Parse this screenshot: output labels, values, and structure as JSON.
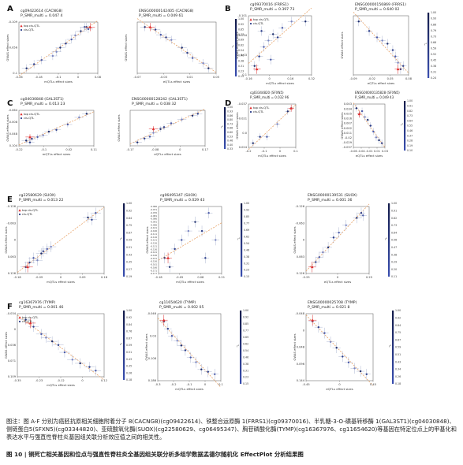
{
  "figure": {
    "note": "图注：图 A-F 分别为癌胚抗原相关细胞附着分子 8(CACNG8)(cg09422614)、铁整合运原酶 1(FRRS1)(cg09370016)、半乳糖-3-O-磺基转移酶 1(GAL3ST1)(cg04030848)、侧链蛋白5(SFXN5)(cg03344820)、亚硫酸氧化酶(SUOX)(cg22580629、cg06495347)、胸苷磷酸化酶(TYMP)(cg16367976、cg11654620)等基因在特定位点上的甲基化和表达水平与强直性脊柱炎基因组关联分析效应值之间的相关性。",
    "title": "图 10 | 铜死亡相关基因和位点与强直性脊柱炎全基因组关联分析多组学数据孟德尔随机化 EffectPlot 分析结果图"
  },
  "chart_data": [
    {
      "type": "scatter",
      "panel": "A",
      "title": "cg09422614 (CACNG8)",
      "subtitle": "P_SMR_multi = 0.047 4",
      "xlabel": "mQTLs effect sizes",
      "ylabel": "GWAS effect sizes",
      "xticks": [
        "-0.26",
        "-0.18",
        "-0.1",
        "0",
        "0.08"
      ],
      "yticks": [
        "-0.109",
        "-0.056",
        "0.1"
      ],
      "legend": [
        "top cis-QTL",
        "cis-QTL"
      ],
      "colorbar_ticks": [],
      "points": [
        [
          -0.26,
          -0.1
        ],
        [
          -0.22,
          -0.08
        ],
        [
          -0.18,
          -0.06
        ],
        [
          -0.12,
          -0.04
        ],
        [
          -0.08,
          0.0
        ],
        [
          -0.05,
          0.02
        ],
        [
          -0.02,
          0.04
        ],
        [
          0.0,
          0.06
        ],
        [
          0.03,
          0.08
        ],
        [
          0.05,
          0.1
        ],
        [
          0.07,
          0.09
        ],
        [
          -0.1,
          -0.02
        ],
        [
          0.06,
          0.1
        ]
      ],
      "top": [
        0.08,
        0.1
      ]
    },
    {
      "type": "scatter",
      "panel": "A",
      "title": "ENSG00000142405 (CACNG8)",
      "subtitle": "P_SMR_multi = 0.049 61",
      "xlabel": "eQTLs effect sizes",
      "ylabel": "GWAS effect sizes",
      "xticks": [
        "-0.07",
        "-0.03",
        "0.01",
        "0.05"
      ],
      "yticks": [],
      "legend": [],
      "colorbar_ticks": [
        "1.00",
        "0.92",
        "0.85",
        "0.77",
        "0.69",
        "0.62",
        "0.54",
        "0.46",
        "0.38",
        "0.31",
        "0.23",
        "0.15"
      ],
      "points": [
        [
          -0.07,
          0.1
        ],
        [
          -0.05,
          0.09
        ],
        [
          -0.04,
          0.07
        ],
        [
          -0.02,
          0.05
        ],
        [
          0.0,
          0.02
        ],
        [
          0.01,
          0.0
        ],
        [
          0.02,
          -0.02
        ],
        [
          0.04,
          -0.04
        ],
        [
          0.05,
          -0.06
        ],
        [
          -0.03,
          0.06
        ]
      ],
      "top": [
        -0.06,
        0.1
      ]
    },
    {
      "type": "scatter",
      "panel": "B",
      "title": "cg09370016 (FRRS1)",
      "subtitle": "P_SMR_multi = 0.397 73",
      "xlabel": "mQTLs effect sizes",
      "ylabel": "GWAS effect sizes",
      "xticks": [
        "-0.16",
        "0",
        "0.16",
        "0.32"
      ],
      "yticks": [
        "-0.101",
        "-0.034",
        "0.03",
        "0.1"
      ],
      "legend": [
        "top cis-QTL",
        "cis-QTL"
      ],
      "colorbar_ticks": [],
      "points": [
        [
          -0.16,
          -0.06
        ],
        [
          -0.12,
          -0.03
        ],
        [
          -0.08,
          0.0
        ],
        [
          -0.04,
          0.02
        ],
        [
          0.0,
          0.04
        ],
        [
          0.04,
          0.03
        ],
        [
          0.08,
          0.06
        ],
        [
          0.16,
          0.08
        ],
        [
          0.28,
          0.08
        ],
        [
          -0.1,
          0.05
        ],
        [
          -0.02,
          -0.04
        ]
      ],
      "top": [
        -0.14,
        -0.07
      ]
    },
    {
      "type": "scatter",
      "panel": "B",
      "title": "ENSG00000156869 (FRRS1)",
      "subtitle": "P_SMR_multi = 0.640 02",
      "xlabel": "eQTLs effect sizes",
      "ylabel": "GWAS effect sizes",
      "xticks": [
        "-0.09",
        "-0.02",
        "0.05",
        "0.08"
      ],
      "yticks": [],
      "legend": [],
      "colorbar_ticks": [
        "1.00",
        "0.93",
        "0.86",
        "0.79",
        "0.73",
        "0.66",
        "0.59",
        "0.52",
        "0.45",
        "0.38",
        "0.31",
        "0.24"
      ],
      "points": [
        [
          -0.09,
          0.09
        ],
        [
          -0.05,
          0.06
        ],
        [
          -0.02,
          0.04
        ],
        [
          0.0,
          0.03
        ],
        [
          0.02,
          0.02
        ],
        [
          0.04,
          0.0
        ],
        [
          0.05,
          -0.02
        ],
        [
          0.06,
          -0.04
        ],
        [
          0.07,
          -0.06
        ],
        [
          0.08,
          -0.05
        ]
      ],
      "top": [
        0.06,
        -0.06
      ]
    },
    {
      "type": "scatter",
      "panel": "C",
      "title": "cg04030848 (GAL3ST1)",
      "subtitle": "P_SMR_multi = 0.013 23",
      "xlabel": "mQTLs effect sizes",
      "ylabel": "GWAS effect sizes",
      "xticks": [
        "-0.22",
        "-0.1",
        "0.02",
        "0.11"
      ],
      "yticks": [
        "-0.064",
        "-0.008",
        "0.048",
        "0.104"
      ],
      "legend": [
        "top cis-QTL",
        "cis-QTL"
      ],
      "colorbar_ticks": [],
      "points": [
        [
          -0.22,
          -0.05
        ],
        [
          -0.19,
          -0.04
        ],
        [
          -0.16,
          -0.03
        ],
        [
          -0.13,
          -0.02
        ],
        [
          -0.1,
          0.0
        ],
        [
          -0.06,
          0.01
        ],
        [
          0.0,
          0.04
        ],
        [
          0.06,
          0.08
        ],
        [
          0.1,
          0.1
        ],
        [
          -0.2,
          -0.06
        ]
      ],
      "top": [
        -0.2,
        -0.03
      ]
    },
    {
      "type": "scatter",
      "panel": "C",
      "title": "ENSG00000128242 (GAL3ST1)",
      "subtitle": "P_SMR_multi = 0.038 32",
      "xlabel": "eQTLs effect sizes",
      "ylabel": "GWAS effect sizes",
      "xticks": [
        "-0.17",
        "-0.08",
        "0",
        "0.17"
      ],
      "yticks": [],
      "legend": [],
      "colorbar_ticks": [
        "1.00",
        "0.93",
        "0.86",
        "0.80",
        "0.73",
        "0.66",
        "0.60",
        "0.53",
        "0.46",
        "0.40",
        "0.33"
      ],
      "points": [
        [
          -0.17,
          -0.05
        ],
        [
          -0.13,
          -0.03
        ],
        [
          -0.1,
          -0.02
        ],
        [
          -0.08,
          0.0
        ],
        [
          -0.04,
          0.02
        ],
        [
          -0.02,
          0.03
        ],
        [
          0.02,
          0.05
        ],
        [
          0.08,
          0.07
        ],
        [
          0.14,
          0.09
        ],
        [
          0.17,
          0.1
        ]
      ],
      "top": [
        -0.08,
        0.02
      ]
    },
    {
      "type": "scatter",
      "panel": "D",
      "title": "cg03344820 (SFXN5)",
      "subtitle": "P_SMR_multi = 0.032 96",
      "xlabel": "mQTLs effect sizes",
      "ylabel": "GWAS effect sizes",
      "xticks": [
        "-0.2",
        "-0.1",
        "0",
        "0.1"
      ],
      "yticks": [
        "-0.037",
        "-0.021",
        "0.0",
        "0.024"
      ],
      "legend": [
        "top cis-QTL",
        "cis-QTL"
      ],
      "colorbar_ticks": [],
      "points": [
        [
          -0.02,
          -0.03
        ],
        [
          0.0,
          -0.02
        ],
        [
          0.02,
          -0.02
        ],
        [
          0.05,
          0.0
        ],
        [
          0.08,
          0.02
        ],
        [
          0.09,
          0.025
        ]
      ],
      "top": [
        0.09,
        0.025
      ]
    },
    {
      "type": "scatter",
      "panel": "D",
      "title": "ENSG00000135828 (SFXN5)",
      "subtitle": "P_SMR_multi = 0.049 43",
      "xlabel": "eQTLs effect sizes",
      "ylabel": "GWAS effect sizes",
      "xticks": [
        "-0.06",
        "-0.04",
        "-0.01",
        "0.01",
        "0.03"
      ],
      "yticks": [
        "0.043",
        "0.034",
        "0.025",
        "0.016",
        "0.007",
        "-0.002",
        "-0.011",
        "-0.02",
        "-0.029",
        "-0.037"
      ],
      "legend": [],
      "colorbar_ticks": [
        "1.00",
        "0.91",
        "0.82",
        "0.73",
        "0.64",
        "0.55",
        "0.46",
        "0.37",
        "0.28",
        "0.19",
        "0.10"
      ],
      "points": [
        [
          -0.06,
          0.03
        ],
        [
          -0.05,
          0.02
        ],
        [
          -0.04,
          0.025
        ],
        [
          -0.03,
          0.015
        ],
        [
          -0.02,
          0.01
        ],
        [
          -0.01,
          0.0
        ],
        [
          0.0,
          -0.01
        ],
        [
          0.01,
          -0.02
        ],
        [
          0.02,
          -0.025
        ],
        [
          0.03,
          -0.03
        ]
      ],
      "top": [
        -0.05,
        0.02
      ]
    },
    {
      "type": "scatter",
      "panel": "E",
      "title": "cg22580629 (SUOX)",
      "subtitle": "P_SMR_multi = 0.013 22",
      "xlabel": "mQTLs effect sizes",
      "ylabel": "GWAS effect sizes",
      "xticks": [
        "-0.18",
        "-0.09",
        "0",
        "0.09",
        "0.18"
      ],
      "yticks": [
        "-0.126",
        "-0.063",
        "0",
        "0.063",
        "0.126"
      ],
      "legend": [
        "top cis-QTL",
        "cis-QTL"
      ],
      "colorbar_ticks": [
        "1.00",
        "0.92",
        "0.84",
        "0.75",
        "0.67",
        "0.59",
        "0.51",
        "0.43",
        "0.35",
        "0.27",
        "0.19"
      ],
      "points": [
        [
          -0.18,
          -0.12
        ],
        [
          -0.16,
          -0.1
        ],
        [
          -0.14,
          -0.08
        ],
        [
          -0.12,
          -0.09
        ],
        [
          -0.1,
          -0.06
        ],
        [
          -0.09,
          -0.05
        ],
        [
          -0.07,
          -0.04
        ],
        [
          -0.05,
          -0.03
        ],
        [
          0.14,
          0.1
        ],
        [
          0.16,
          0.09
        ],
        [
          0.18,
          0.12
        ]
      ],
      "top": [
        -0.17,
        -0.12
      ]
    },
    {
      "type": "scatter",
      "panel": "E",
      "title": "cg06495347 (SUOX)",
      "subtitle": "P_SMR_multi = 0.029 43",
      "xlabel": "mQTLs effect sizes",
      "ylabel": "GWAS effect sizes",
      "xticks": [
        "-0.18",
        "-0.05",
        "0.08",
        "0.21"
      ],
      "yticks": [
        "-0.066",
        "-0.071",
        "-0.076",
        "-0.081",
        "-0.086",
        "-0.091",
        "-0.096",
        "-0.101",
        "-0.106",
        "-0.111",
        "-0.116",
        "-0.121",
        "-0.126",
        "-0.131",
        "-0.136",
        "-0.141",
        "-0.146",
        "-0.151",
        "-0.156",
        "-0.161",
        "-0.166",
        "-0.171",
        "-0.177"
      ],
      "legend": [],
      "colorbar_ticks": [
        "1.00",
        "0.92",
        "0.85",
        "0.77",
        "0.69",
        "0.62",
        "0.54",
        "0.46",
        "0.38",
        "0.31",
        "0.23",
        "0.15"
      ],
      "points": [
        [
          -0.18,
          -0.12
        ],
        [
          -0.12,
          -0.11
        ],
        [
          -0.08,
          -0.1
        ],
        [
          -0.04,
          -0.09
        ],
        [
          0.0,
          -0.08
        ],
        [
          0.04,
          -0.09
        ],
        [
          0.08,
          -0.07
        ],
        [
          0.12,
          -0.1
        ],
        [
          -0.15,
          -0.13
        ],
        [
          0.06,
          -0.12
        ]
      ],
      "top": [
        -0.16,
        -0.12
      ]
    },
    {
      "type": "scatter",
      "panel": "E",
      "title": "ENSG00000139531 (SUOX)",
      "subtitle": "P_SMR_multi = 0.001 36",
      "xlabel": "eQTLs effect sizes",
      "ylabel": "GWAS effect sizes",
      "xticks": [
        "-0.25",
        "0",
        "0.25"
      ],
      "yticks": [
        "-0.126",
        "-0.063",
        "0",
        "0.063",
        "0.126"
      ],
      "legend": [],
      "colorbar_ticks": [
        "1.00",
        "0.91",
        "0.82",
        "0.73",
        "0.64",
        "0.56",
        "0.47",
        "0.38",
        "0.29",
        "0.20",
        "0.11"
      ],
      "points": [
        [
          -0.3,
          -0.12
        ],
        [
          -0.26,
          -0.1
        ],
        [
          -0.22,
          -0.08
        ],
        [
          -0.18,
          -0.06
        ],
        [
          -0.12,
          -0.04
        ],
        [
          -0.06,
          0.0
        ],
        [
          0.0,
          0.02
        ],
        [
          0.08,
          0.05
        ],
        [
          0.2,
          0.08
        ],
        [
          0.25,
          0.1
        ],
        [
          0.27,
          0.09
        ]
      ],
      "top": [
        -0.3,
        -0.12
      ]
    },
    {
      "type": "scatter",
      "panel": "F",
      "title": "cg16367976 (TYMP)",
      "subtitle": "P_SMR_multi = 0.001 46",
      "xlabel": "mQTLs effect sizes",
      "ylabel": "GWAS effect sizes",
      "xticks": [
        "-0.35",
        "-0.23",
        "-0.12",
        "0",
        "0.12"
      ],
      "yticks": [
        "-0.034",
        "0",
        "0.036",
        "0.071",
        "0.109"
      ],
      "legend": [
        "top cis-QTL",
        "cis-QTL"
      ],
      "colorbar_ticks": [
        "1.00",
        "0.92",
        "0.84",
        "0.76",
        "0.67",
        "0.59",
        "0.51",
        "0.43",
        "0.35",
        "0.26",
        "0.18"
      ],
      "points": [
        [
          -0.35,
          0.109
        ],
        [
          -0.3,
          0.09
        ],
        [
          -0.25,
          0.07
        ],
        [
          -0.22,
          0.06
        ],
        [
          -0.18,
          0.05
        ],
        [
          -0.14,
          0.04
        ],
        [
          -0.1,
          0.02
        ],
        [
          -0.05,
          0.0
        ],
        [
          0.0,
          -0.01
        ],
        [
          0.06,
          -0.02
        ],
        [
          0.1,
          -0.03
        ]
      ],
      "top": [
        -0.32,
        0.1
      ]
    },
    {
      "type": "scatter",
      "panel": "F",
      "title": "cg11654620 (TYMP)",
      "subtitle": "P_SMR_multi = 0.002 05",
      "xlabel": "mQTLs effect sizes",
      "ylabel": "GWAS effect sizes",
      "xticks": [
        "-0.3",
        "-0.2",
        "-0.1",
        "0",
        "0.1"
      ],
      "yticks": [
        "-0.046",
        "0.03",
        "0.108",
        "0.186"
      ],
      "legend": [],
      "colorbar_ticks": [
        "1.00",
        "0.92",
        "0.85",
        "0.77",
        "0.69",
        "0.62",
        "0.54",
        "0.46",
        "0.38",
        "0.31",
        "0.23",
        "0.15"
      ],
      "points": [
        [
          -0.28,
          0.18
        ],
        [
          -0.25,
          0.15
        ],
        [
          -0.22,
          0.12
        ],
        [
          -0.18,
          0.1
        ],
        [
          -0.15,
          0.08
        ],
        [
          -0.12,
          0.06
        ],
        [
          -0.08,
          0.03
        ],
        [
          -0.04,
          0.01
        ],
        [
          0.0,
          -0.02
        ],
        [
          0.05,
          -0.03
        ],
        [
          0.1,
          -0.04
        ]
      ],
      "top": [
        -0.28,
        0.186
      ]
    },
    {
      "type": "scatter",
      "panel": "F",
      "title": "ENSG00000025708 (TYMP)",
      "subtitle": "P_SMR_multi = 0.021 8",
      "xlabel": "eQTLs effect sizes",
      "ylabel": "GWAS effect sizes",
      "xticks": [
        "-0.45",
        "0",
        "0.45"
      ],
      "yticks": [
        "-0.048",
        "0",
        "0.048",
        "0.096",
        "0.144"
      ],
      "legend": [],
      "colorbar_ticks": [
        "1.00",
        "0.92",
        "0.84",
        "0.75",
        "0.67",
        "0.59",
        "0.51",
        "0.43",
        "0.34",
        "0.26",
        "0.18"
      ],
      "points": [
        [
          -0.45,
          0.14
        ],
        [
          -0.35,
          0.12
        ],
        [
          -0.25,
          0.1
        ],
        [
          -0.15,
          0.07
        ],
        [
          -0.05,
          0.05
        ],
        [
          0.05,
          0.02
        ],
        [
          0.15,
          0.0
        ],
        [
          0.25,
          -0.02
        ],
        [
          0.35,
          -0.03
        ],
        [
          0.45,
          -0.04
        ]
      ],
      "top": [
        -0.45,
        0.144
      ]
    }
  ]
}
